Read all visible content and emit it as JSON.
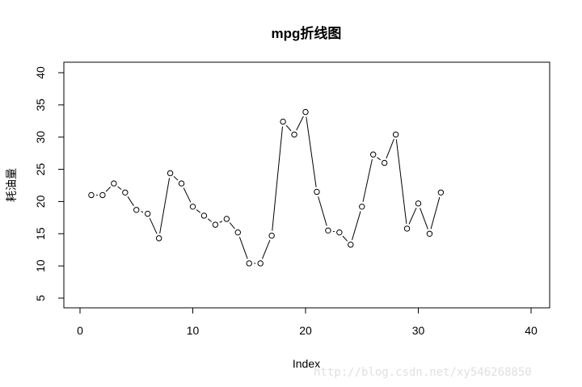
{
  "chart_data": {
    "type": "line",
    "title": "mpg折线图",
    "xlabel": "Index",
    "ylabel": "耗油量",
    "xlim": [
      0,
      40
    ],
    "ylim": [
      5,
      40
    ],
    "x_ticks": [
      "0",
      "10",
      "20",
      "30",
      "40"
    ],
    "y_ticks": [
      "5",
      "10",
      "15",
      "20",
      "25",
      "30",
      "35",
      "40"
    ],
    "markers": "open-circle",
    "grid": false,
    "x": [
      1,
      2,
      3,
      4,
      5,
      6,
      7,
      8,
      9,
      10,
      11,
      12,
      13,
      14,
      15,
      16,
      17,
      18,
      19,
      20,
      21,
      22,
      23,
      24,
      25,
      26,
      27,
      28,
      29,
      30,
      31,
      32
    ],
    "values": [
      21.0,
      21.0,
      22.8,
      21.4,
      18.7,
      18.1,
      14.3,
      24.4,
      22.8,
      19.2,
      17.8,
      16.4,
      17.3,
      15.2,
      10.4,
      10.4,
      14.7,
      32.4,
      30.4,
      33.9,
      21.5,
      15.5,
      15.2,
      13.3,
      19.2,
      27.3,
      26.0,
      30.4,
      15.8,
      19.7,
      15.0,
      21.4
    ]
  },
  "watermark": "http://blog.csdn.net/xy546268850"
}
